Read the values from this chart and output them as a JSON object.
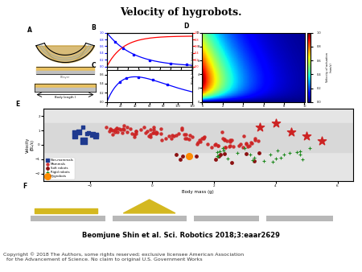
{
  "title": "Velocity of hygrobots.",
  "title_fontsize": 9,
  "title_fontstyle": "normal",
  "citation": "Beomjune Shin et al. Sci. Robotics 2018;3:eaar2629",
  "citation_fontsize": 6,
  "citation_fontweight": "bold",
  "copyright_line1": "Copyright © 2018 The Authors, some rights reserved; exclusive licensee American Association",
  "copyright_line2": "  for the Advancement of Science. No claim to original U.S. Government Works",
  "copyright_fontsize": 4.5,
  "bg_color": "#ffffff",
  "panel_a_label": "A",
  "panel_b_label": "B",
  "panel_c_label": "C",
  "panel_d_label": "D",
  "panel_e_label": "E",
  "panel_f_label": "F",
  "scatter_legend": [
    "Non-mammals",
    "Mammals",
    "Soft robots",
    "Rigid robots",
    "Hygrobots"
  ],
  "scatter_colors": [
    "#1f3a8f",
    "#cc2222",
    "#8b0000",
    "#228b22",
    "#ff8c00"
  ],
  "scatter_markers": [
    "s",
    "o",
    "o",
    "+",
    "o"
  ],
  "photo_colors": [
    "#6b7040",
    "#8a8030",
    "#707860",
    "#505a60"
  ]
}
